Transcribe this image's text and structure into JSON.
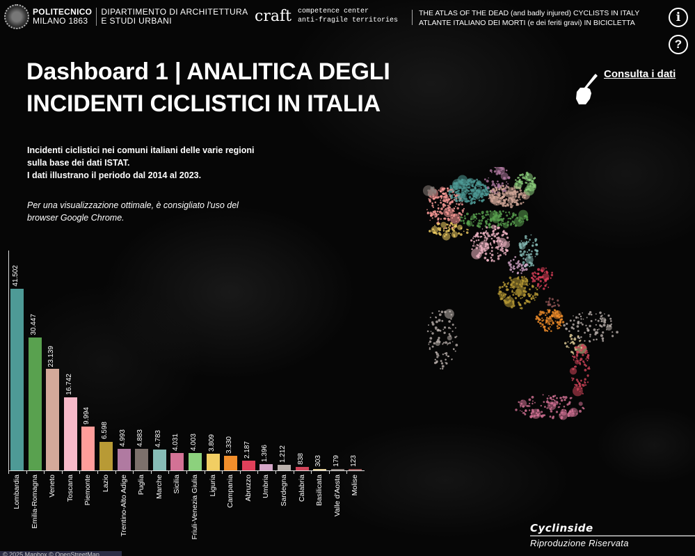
{
  "header": {
    "polimi_line1": "POLITECNICO",
    "polimi_line2": "MILANO 1863",
    "dept_line1": "DIPARTIMENTO DI ARCHITETTURA",
    "dept_line2": "E STUDI URBANI",
    "craft_logo": "craft",
    "craft_line1": "competence center",
    "craft_line2": "anti-fragile territories",
    "atlas_line1": "THE ATLAS OF THE DEAD (and badly injured) CYCLISTS IN ITALY",
    "atlas_line2": "ATLANTE ITALIANO DEI MORTI (e dei feriti gravi) IN BICICLETTA",
    "info_icon": "i",
    "help_icon": "?"
  },
  "title": {
    "line1": "Dashboard 1 | ANALITICA DEGLI",
    "line2": "INCIDENTI CICLISTICI IN ITALIA"
  },
  "consulta": {
    "label": "Consulta i dati",
    "icon": "pointing-hand-icon"
  },
  "description": {
    "line1": "Incidenti ciclistici nei comuni italiani delle varie regioni",
    "line2": "sulla base dei dati ISTAT.",
    "line3": "I dati illustrano il periodo dal 2014 al 2023.",
    "note1": "Per una visualizzazione ottimale, è consigliato l'uso del",
    "note2": "browser Google Chrome."
  },
  "chart_data": {
    "type": "bar",
    "title": "",
    "xlabel": "",
    "ylabel": "",
    "categories": [
      "Lombardia",
      "Emilia-Romagna",
      "Veneto",
      "Toscana",
      "Piemonte",
      "Lazio",
      "Trentino-Alto Adige",
      "Puglia",
      "Marche",
      "Sicilia",
      "Friuli-Venezia Giulia",
      "Liguria",
      "Campania",
      "Abruzzo",
      "Umbria",
      "Sardegna",
      "Calabria",
      "Basilicata",
      "Valle d'Aosta",
      "Molise"
    ],
    "values": [
      41502,
      30447,
      23139,
      16742,
      9994,
      6598,
      4993,
      4883,
      4783,
      4031,
      4003,
      3809,
      3330,
      2187,
      1396,
      1212,
      838,
      303,
      179,
      123
    ],
    "value_labels": [
      "41.502",
      "30.447",
      "23.139",
      "16.742",
      "9.994",
      "6.598",
      "4.993",
      "4.883",
      "4.783",
      "4.031",
      "4.003",
      "3.809",
      "3.330",
      "2.187",
      "1.396",
      "1.212",
      "838",
      "303",
      "179",
      "123"
    ],
    "colors": [
      "#4e9a96",
      "#59a14f",
      "#d4a99a",
      "#f6b9c9",
      "#ff9d9a",
      "#b89a35",
      "#b07aa1",
      "#7c706b",
      "#86bcb6",
      "#d37295",
      "#8cd17d",
      "#f1ce63",
      "#f28e2b",
      "#e0405a",
      "#d4a6c8",
      "#bab0ac",
      "#d1455a",
      "#e8d39c",
      "#8a7f7a",
      "#9a5a5a"
    ],
    "ylim": [
      0,
      42000
    ],
    "grid": false,
    "legend": "none"
  },
  "footer": {
    "cyclinside_logo": "Cyclinside",
    "cyclinside_sub": "Riproduzione Riservata",
    "attribution": "© 2025 Mapbox © OpenStreetMap"
  }
}
